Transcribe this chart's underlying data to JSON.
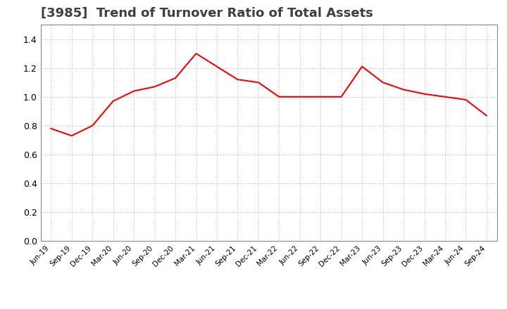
{
  "title": "[3985]  Trend of Turnover Ratio of Total Assets",
  "title_fontsize": 13,
  "title_color": "#404040",
  "line_color": "#FF0000",
  "line_width": 1.5,
  "background_color": "#FFFFFF",
  "grid_color": "#AAAAAA",
  "ylim": [
    0.0,
    1.5
  ],
  "yticks": [
    0.0,
    0.2,
    0.4,
    0.6,
    0.8,
    1.0,
    1.2,
    1.4
  ],
  "x_labels": [
    "Jun-19",
    "Sep-19",
    "Dec-19",
    "Mar-20",
    "Jun-20",
    "Sep-20",
    "Dec-20",
    "Mar-21",
    "Jun-21",
    "Sep-21",
    "Dec-21",
    "Mar-22",
    "Jun-22",
    "Sep-22",
    "Dec-22",
    "Mar-23",
    "Jun-23",
    "Sep-23",
    "Dec-23",
    "Mar-24",
    "Jun-24",
    "Sep-24"
  ],
  "y_values": [
    0.78,
    0.73,
    0.8,
    0.97,
    1.04,
    1.07,
    1.13,
    1.3,
    1.21,
    1.12,
    1.1,
    1.0,
    1.0,
    1.0,
    1.0,
    1.21,
    1.1,
    1.05,
    1.02,
    1.0,
    0.98,
    0.87
  ]
}
